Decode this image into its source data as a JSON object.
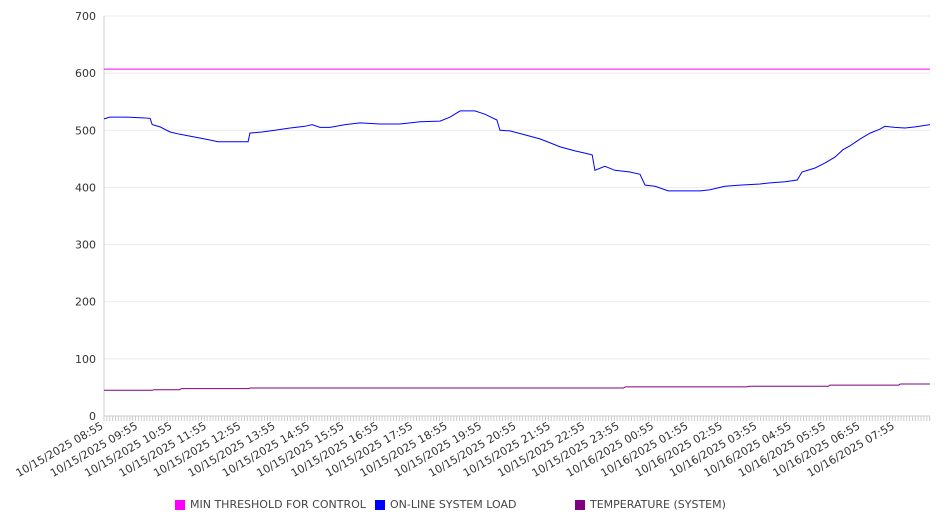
{
  "chart_data": {
    "type": "line",
    "title": "",
    "xlabel": "",
    "ylabel": "",
    "ylim": [
      0,
      700
    ],
    "yticks": [
      0,
      100,
      200,
      300,
      400,
      500,
      600,
      700
    ],
    "x_unit": "hours since 10/15/2025 08:55",
    "xlim": [
      0,
      24.01
    ],
    "xtick_labels": [
      "10/15/2025 08:55",
      "10/15/2025 09:55",
      "10/15/2025 10:55",
      "10/15/2025 11:55",
      "10/15/2025 12:55",
      "10/15/2025 13:55",
      "10/15/2025 14:55",
      "10/15/2025 15:55",
      "10/15/2025 16:55",
      "10/15/2025 17:55",
      "10/15/2025 18:55",
      "10/15/2025 19:55",
      "10/15/2025 20:55",
      "10/15/2025 21:55",
      "10/15/2025 22:55",
      "10/15/2025 23:55",
      "10/16/2025 00:55",
      "10/16/2025 01:55",
      "10/16/2025 02:55",
      "10/16/2025 03:55",
      "10/16/2025 04:55",
      "10/16/2025 05:55",
      "10/16/2025 06:55",
      "10/16/2025 07:55"
    ],
    "grid": true,
    "legend_position": "bottom",
    "series": [
      {
        "name": "MIN THRESHOLD FOR CONTROL",
        "color": "#ff00ff",
        "points": [
          [
            0,
            607
          ],
          [
            24.01,
            607
          ]
        ]
      },
      {
        "name": "ON-LINE SYSTEM LOAD",
        "color": "#0000ff",
        "points": [
          [
            0,
            520
          ],
          [
            0.17,
            523
          ],
          [
            0.61,
            523
          ],
          [
            1.05,
            522
          ],
          [
            1.34,
            521
          ],
          [
            1.4,
            510
          ],
          [
            1.63,
            506
          ],
          [
            1.92,
            497
          ],
          [
            2.21,
            493
          ],
          [
            2.65,
            488
          ],
          [
            3.08,
            483
          ],
          [
            3.31,
            480
          ],
          [
            4.19,
            480
          ],
          [
            4.24,
            495
          ],
          [
            4.59,
            497
          ],
          [
            4.97,
            500
          ],
          [
            5.41,
            504
          ],
          [
            5.84,
            507
          ],
          [
            6.05,
            510
          ],
          [
            6.28,
            505
          ],
          [
            6.57,
            505
          ],
          [
            7.01,
            510
          ],
          [
            7.44,
            513
          ],
          [
            8.02,
            511
          ],
          [
            8.6,
            511
          ],
          [
            9.19,
            515
          ],
          [
            9.77,
            516
          ],
          [
            10.06,
            523
          ],
          [
            10.35,
            534
          ],
          [
            10.78,
            534
          ],
          [
            11.08,
            528
          ],
          [
            11.42,
            518
          ],
          [
            11.51,
            500
          ],
          [
            11.8,
            499
          ],
          [
            12.24,
            492
          ],
          [
            12.67,
            485
          ],
          [
            12.97,
            478
          ],
          [
            13.26,
            471
          ],
          [
            13.69,
            464
          ],
          [
            13.98,
            460
          ],
          [
            14.19,
            457
          ],
          [
            14.27,
            430
          ],
          [
            14.56,
            437
          ],
          [
            14.85,
            430
          ],
          [
            15.29,
            427
          ],
          [
            15.58,
            423
          ],
          [
            15.73,
            404
          ],
          [
            16.02,
            402
          ],
          [
            16.4,
            394
          ],
          [
            16.74,
            394
          ],
          [
            17.33,
            394
          ],
          [
            17.62,
            396
          ],
          [
            18.05,
            402
          ],
          [
            18.49,
            404
          ],
          [
            19.07,
            406
          ],
          [
            19.36,
            408
          ],
          [
            19.8,
            410
          ],
          [
            20.15,
            413
          ],
          [
            20.29,
            427
          ],
          [
            20.67,
            434
          ],
          [
            20.96,
            443
          ],
          [
            21.25,
            453
          ],
          [
            21.48,
            466
          ],
          [
            21.69,
            473
          ],
          [
            21.98,
            485
          ],
          [
            22.27,
            495
          ],
          [
            22.56,
            502
          ],
          [
            22.7,
            507
          ],
          [
            22.99,
            505
          ],
          [
            23.28,
            504
          ],
          [
            23.58,
            506
          ],
          [
            24.01,
            510
          ]
        ]
      },
      {
        "name": "TEMPERATURE (SYSTEM)",
        "color": "#800080",
        "points": [
          [
            0,
            45
          ],
          [
            1.4,
            45
          ],
          [
            1.45,
            46
          ],
          [
            2.2,
            46
          ],
          [
            2.25,
            48
          ],
          [
            4.2,
            48
          ],
          [
            4.25,
            49
          ],
          [
            15.1,
            49
          ],
          [
            15.15,
            51
          ],
          [
            18.7,
            51
          ],
          [
            18.75,
            52
          ],
          [
            21.05,
            52
          ],
          [
            21.1,
            54
          ],
          [
            23.1,
            54
          ],
          [
            23.15,
            56
          ],
          [
            24.01,
            56
          ]
        ]
      }
    ]
  }
}
